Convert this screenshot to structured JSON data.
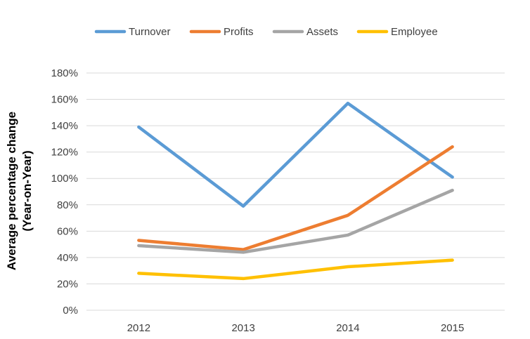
{
  "chart_data": {
    "type": "line",
    "x": [
      "2012",
      "2013",
      "2014",
      "2015"
    ],
    "ylabel_line1": "Average percentage change",
    "ylabel_line2": "(Year-on-Year)",
    "ylim": [
      0,
      180
    ],
    "yticks": [
      0,
      20,
      40,
      60,
      80,
      100,
      120,
      140,
      160,
      180
    ],
    "ytick_suffix": "%",
    "grid": "horizontal",
    "legend_position": "top",
    "series": [
      {
        "name": "Turnover",
        "color": "#5B9BD5",
        "values": [
          139,
          79,
          157,
          101
        ]
      },
      {
        "name": "Profits",
        "color": "#ED7D31",
        "values": [
          53,
          46,
          72,
          124
        ]
      },
      {
        "name": "Assets",
        "color": "#A5A5A5",
        "values": [
          49,
          44,
          57,
          91
        ]
      },
      {
        "name": "Employee",
        "color": "#FFC000",
        "values": [
          28,
          24,
          33,
          38
        ]
      }
    ]
  }
}
